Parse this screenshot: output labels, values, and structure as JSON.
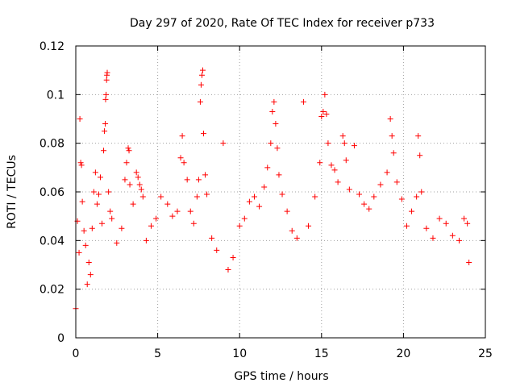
{
  "chart_data": {
    "type": "scatter",
    "title": "Day 297 of 2020, Rate Of TEC Index for receiver p733",
    "xlabel": "GPS time / hours",
    "ylabel": "ROTI / TECUs",
    "xlim": [
      0,
      25
    ],
    "ylim": [
      0,
      0.12
    ],
    "xticks": [
      "0",
      "5",
      "10",
      "15",
      "20",
      "25"
    ],
    "yticks": [
      "0",
      "0.02",
      "0.04",
      "0.06",
      "0.08",
      "0.1",
      "0.12"
    ],
    "grid": true,
    "legend": "none",
    "marker": "+",
    "color": "#ff0000",
    "series": [
      {
        "points": [
          [
            0.0,
            0.012
          ],
          [
            0.1,
            0.048
          ],
          [
            0.2,
            0.035
          ],
          [
            0.25,
            0.09
          ],
          [
            0.3,
            0.072
          ],
          [
            0.35,
            0.071
          ],
          [
            0.4,
            0.056
          ],
          [
            0.5,
            0.044
          ],
          [
            0.6,
            0.038
          ],
          [
            0.7,
            0.022
          ],
          [
            0.8,
            0.031
          ],
          [
            0.9,
            0.026
          ],
          [
            1.0,
            0.045
          ],
          [
            1.1,
            0.06
          ],
          [
            1.2,
            0.068
          ],
          [
            1.3,
            0.055
          ],
          [
            1.4,
            0.059
          ],
          [
            1.5,
            0.066
          ],
          [
            1.6,
            0.047
          ],
          [
            1.7,
            0.077
          ],
          [
            1.75,
            0.085
          ],
          [
            1.8,
            0.088
          ],
          [
            1.82,
            0.098
          ],
          [
            1.85,
            0.1
          ],
          [
            1.88,
            0.106
          ],
          [
            1.9,
            0.108
          ],
          [
            1.92,
            0.109
          ],
          [
            2.0,
            0.06
          ],
          [
            2.1,
            0.052
          ],
          [
            2.2,
            0.049
          ],
          [
            2.5,
            0.039
          ],
          [
            2.8,
            0.045
          ],
          [
            3.0,
            0.065
          ],
          [
            3.1,
            0.072
          ],
          [
            3.2,
            0.078
          ],
          [
            3.25,
            0.077
          ],
          [
            3.3,
            0.063
          ],
          [
            3.5,
            0.055
          ],
          [
            3.7,
            0.068
          ],
          [
            3.8,
            0.066
          ],
          [
            3.9,
            0.063
          ],
          [
            4.0,
            0.061
          ],
          [
            4.1,
            0.058
          ],
          [
            4.3,
            0.04
          ],
          [
            4.6,
            0.046
          ],
          [
            4.9,
            0.049
          ],
          [
            5.2,
            0.058
          ],
          [
            5.6,
            0.055
          ],
          [
            5.9,
            0.05
          ],
          [
            6.2,
            0.052
          ],
          [
            6.4,
            0.074
          ],
          [
            6.5,
            0.083
          ],
          [
            6.6,
            0.072
          ],
          [
            6.8,
            0.065
          ],
          [
            7.0,
            0.052
          ],
          [
            7.2,
            0.047
          ],
          [
            7.4,
            0.058
          ],
          [
            7.5,
            0.065
          ],
          [
            7.6,
            0.097
          ],
          [
            7.65,
            0.104
          ],
          [
            7.7,
            0.108
          ],
          [
            7.75,
            0.11
          ],
          [
            7.8,
            0.084
          ],
          [
            7.9,
            0.067
          ],
          [
            8.0,
            0.059
          ],
          [
            8.3,
            0.041
          ],
          [
            8.6,
            0.036
          ],
          [
            9.0,
            0.08
          ],
          [
            9.3,
            0.028
          ],
          [
            9.6,
            0.033
          ],
          [
            10.0,
            0.046
          ],
          [
            10.3,
            0.049
          ],
          [
            10.6,
            0.056
          ],
          [
            10.9,
            0.058
          ],
          [
            11.2,
            0.054
          ],
          [
            11.5,
            0.062
          ],
          [
            11.7,
            0.07
          ],
          [
            11.9,
            0.08
          ],
          [
            12.0,
            0.093
          ],
          [
            12.1,
            0.097
          ],
          [
            12.2,
            0.088
          ],
          [
            12.3,
            0.078
          ],
          [
            12.4,
            0.067
          ],
          [
            12.6,
            0.059
          ],
          [
            12.9,
            0.052
          ],
          [
            13.2,
            0.044
          ],
          [
            13.5,
            0.041
          ],
          [
            13.9,
            0.097
          ],
          [
            14.2,
            0.046
          ],
          [
            14.6,
            0.058
          ],
          [
            14.9,
            0.072
          ],
          [
            15.0,
            0.091
          ],
          [
            15.1,
            0.093
          ],
          [
            15.2,
            0.1
          ],
          [
            15.3,
            0.092
          ],
          [
            15.4,
            0.08
          ],
          [
            15.6,
            0.071
          ],
          [
            15.8,
            0.069
          ],
          [
            16.0,
            0.064
          ],
          [
            16.3,
            0.083
          ],
          [
            16.4,
            0.08
          ],
          [
            16.5,
            0.073
          ],
          [
            16.7,
            0.061
          ],
          [
            17.0,
            0.079
          ],
          [
            17.3,
            0.059
          ],
          [
            17.6,
            0.055
          ],
          [
            17.9,
            0.053
          ],
          [
            18.2,
            0.058
          ],
          [
            18.6,
            0.063
          ],
          [
            19.0,
            0.068
          ],
          [
            19.2,
            0.09
          ],
          [
            19.3,
            0.083
          ],
          [
            19.4,
            0.076
          ],
          [
            19.6,
            0.064
          ],
          [
            19.9,
            0.057
          ],
          [
            20.2,
            0.046
          ],
          [
            20.5,
            0.052
          ],
          [
            20.8,
            0.058
          ],
          [
            20.9,
            0.083
          ],
          [
            21.0,
            0.075
          ],
          [
            21.1,
            0.06
          ],
          [
            21.4,
            0.045
          ],
          [
            21.8,
            0.041
          ],
          [
            22.2,
            0.049
          ],
          [
            22.6,
            0.047
          ],
          [
            23.0,
            0.042
          ],
          [
            23.4,
            0.04
          ],
          [
            23.7,
            0.049
          ],
          [
            23.9,
            0.047
          ],
          [
            24.0,
            0.031
          ]
        ]
      }
    ]
  }
}
